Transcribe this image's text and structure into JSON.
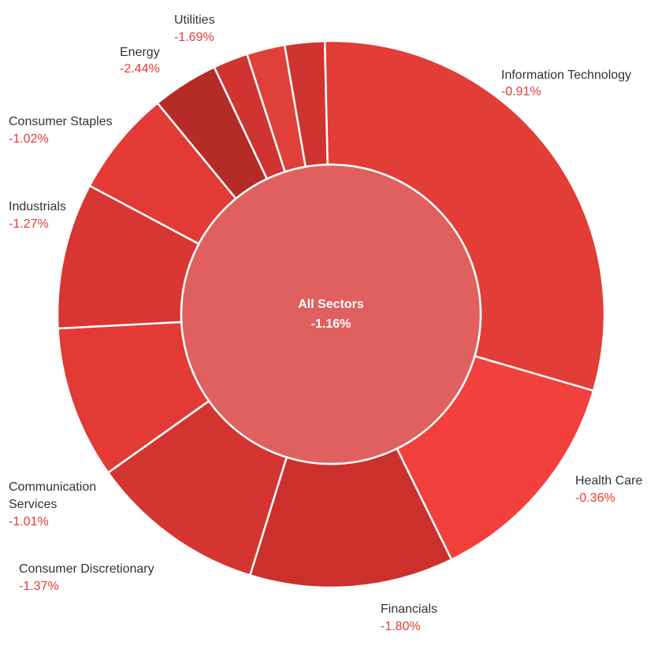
{
  "chart_data": {
    "type": "pie",
    "center": {
      "label": "All Sectors",
      "value": "-1.16%",
      "color": "#e06060"
    },
    "slices": [
      {
        "name": "Information Technology",
        "value": "-0.91%",
        "weight": 30.5,
        "color": "#e23d36"
      },
      {
        "name": "Health Care",
        "value": "-0.36%",
        "weight": 13.5,
        "color": "#f2413c"
      },
      {
        "name": "Financials",
        "value": "-1.80%",
        "weight": 12.3,
        "color": "#cc302c"
      },
      {
        "name": "Consumer Discretionary",
        "value": "-1.37%",
        "weight": 10.6,
        "color": "#d53531"
      },
      {
        "name": "Communication Services",
        "value": "-1.01%",
        "weight": 9.2,
        "color": "#e23a34"
      },
      {
        "name": "Industrials",
        "value": "-1.27%",
        "weight": 8.8,
        "color": "#d83632"
      },
      {
        "name": "Consumer Staples",
        "value": "-1.02%",
        "weight": 6.4,
        "color": "#e23a34"
      },
      {
        "name": "Energy",
        "value": "-2.44%",
        "weight": 4.0,
        "color": "#b52b28"
      },
      {
        "name": "",
        "value": "",
        "weight": 2.1,
        "color": "#d03431"
      },
      {
        "name": "",
        "value": "",
        "weight": 2.3,
        "color": "#e0403a"
      },
      {
        "name": "Utilities",
        "value": "-1.69%",
        "weight": 2.4,
        "color": "#d03431"
      }
    ]
  }
}
